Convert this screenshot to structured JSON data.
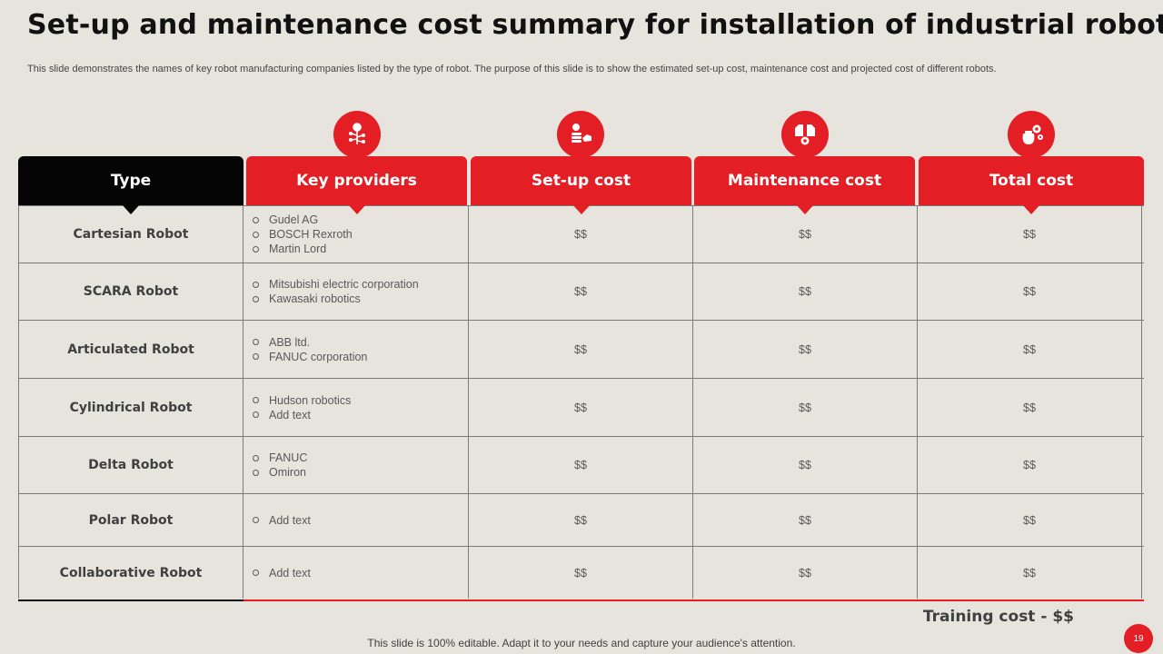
{
  "title": "Set-up and maintenance cost summary for installation of industrial robots",
  "subtitle": "This slide demonstrates the names of key robot manufacturing companies listed by the type  of robot. The purpose of this slide is to show the estimated set-up cost, maintenance cost and projected cost of different robots.",
  "headers": {
    "type": "Type",
    "providers": "Key providers",
    "setup": "Set-up cost",
    "maintenance": "Maintenance cost",
    "total": "Total cost"
  },
  "icons": {
    "providers": "robot-key-icon",
    "setup": "coins-hand-icon",
    "maintenance": "price-tags-gear-icon",
    "total": "money-bag-gears-icon"
  },
  "rows": [
    {
      "type": "Cartesian Robot",
      "providers": [
        "Gudel AG",
        "BOSCH Rexroth",
        "Martin Lord"
      ],
      "setup": "$$",
      "maintenance": "$$",
      "total": "$$"
    },
    {
      "type": "SCARA Robot",
      "providers": [
        "Mitsubishi electric corporation",
        "Kawasaki robotics"
      ],
      "setup": "$$",
      "maintenance": "$$",
      "total": "$$"
    },
    {
      "type": "Articulated Robot",
      "providers": [
        "ABB ltd.",
        "FANUC corporation"
      ],
      "setup": "$$",
      "maintenance": "$$",
      "total": "$$"
    },
    {
      "type": "Cylindrical Robot",
      "providers": [
        "Hudson robotics",
        "Add text"
      ],
      "setup": "$$",
      "maintenance": "$$",
      "total": "$$"
    },
    {
      "type": "Delta Robot",
      "providers": [
        "FANUC",
        "Omiron"
      ],
      "setup": "$$",
      "maintenance": "$$",
      "total": "$$"
    },
    {
      "type": "Polar Robot",
      "providers": [
        "Add text"
      ],
      "setup": "$$",
      "maintenance": "$$",
      "total": "$$"
    },
    {
      "type": "Collaborative Robot",
      "providers": [
        "Add text"
      ],
      "setup": "$$",
      "maintenance": "$$",
      "total": "$$"
    }
  ],
  "training_cost": "Training cost - $$",
  "footer": "This slide is 100% editable. Adapt it to your needs and capture your audience's attention.",
  "page_number": "19",
  "colors": {
    "accent": "#e31e24",
    "background": "#e6e4dd",
    "header_dark": "#050505"
  }
}
